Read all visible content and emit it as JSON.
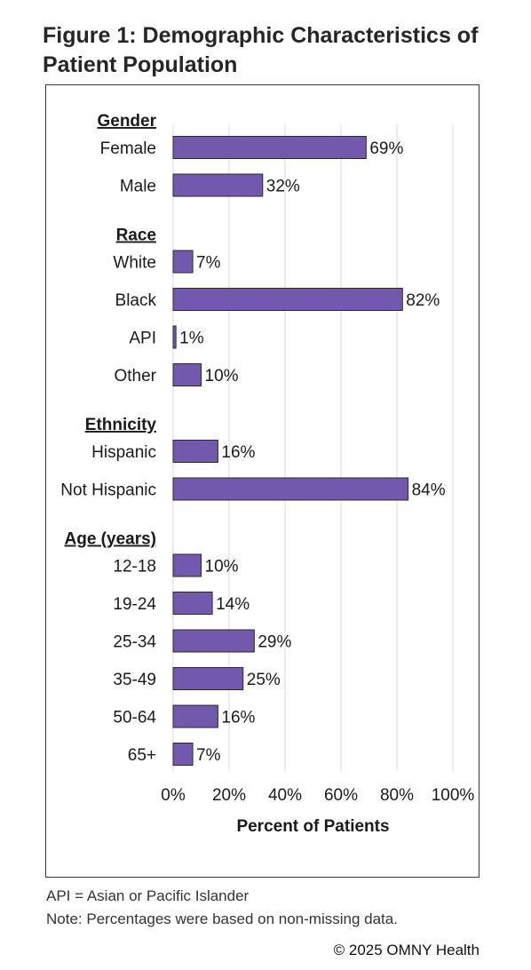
{
  "title": "Figure 1: Demographic Characteristics of Patient Population",
  "notes": [
    "API = Asian or Pacific Islander",
    "Note: Percentages were based on non-missing data."
  ],
  "copyright": "© 2025 OMNY Health",
  "colors": {
    "bar": "#7259ad",
    "bar_stroke": "#2b2b2b",
    "grid": "#d9d9d9"
  },
  "chart_data": {
    "type": "bar",
    "orientation": "horizontal",
    "xlabel": "Percent of Patients",
    "xlim": [
      0,
      100
    ],
    "xticks": [
      "0%",
      "20%",
      "40%",
      "60%",
      "80%",
      "100%"
    ],
    "grid": true,
    "groups": [
      {
        "label": "Gender",
        "items": [
          {
            "category": "Female",
            "value": 69,
            "label": "69%"
          },
          {
            "category": "Male",
            "value": 32,
            "label": "32%"
          }
        ]
      },
      {
        "label": "Race",
        "items": [
          {
            "category": "White",
            "value": 7,
            "label": "7%"
          },
          {
            "category": "Black",
            "value": 82,
            "label": "82%"
          },
          {
            "category": "API",
            "value": 1,
            "label": "1%"
          },
          {
            "category": "Other",
            "value": 10,
            "label": "10%"
          }
        ]
      },
      {
        "label": "Ethnicity",
        "items": [
          {
            "category": "Hispanic",
            "value": 16,
            "label": "16%"
          },
          {
            "category": "Not Hispanic",
            "value": 84,
            "label": "84%"
          }
        ]
      },
      {
        "label": "Age (years)",
        "items": [
          {
            "category": "12-18",
            "value": 10,
            "label": "10%"
          },
          {
            "category": "19-24",
            "value": 14,
            "label": "14%"
          },
          {
            "category": "25-34",
            "value": 29,
            "label": "29%"
          },
          {
            "category": "35-49",
            "value": 25,
            "label": "25%"
          },
          {
            "category": "50-64",
            "value": 16,
            "label": "16%"
          },
          {
            "category": "65+",
            "value": 7,
            "label": "7%"
          }
        ]
      }
    ]
  }
}
